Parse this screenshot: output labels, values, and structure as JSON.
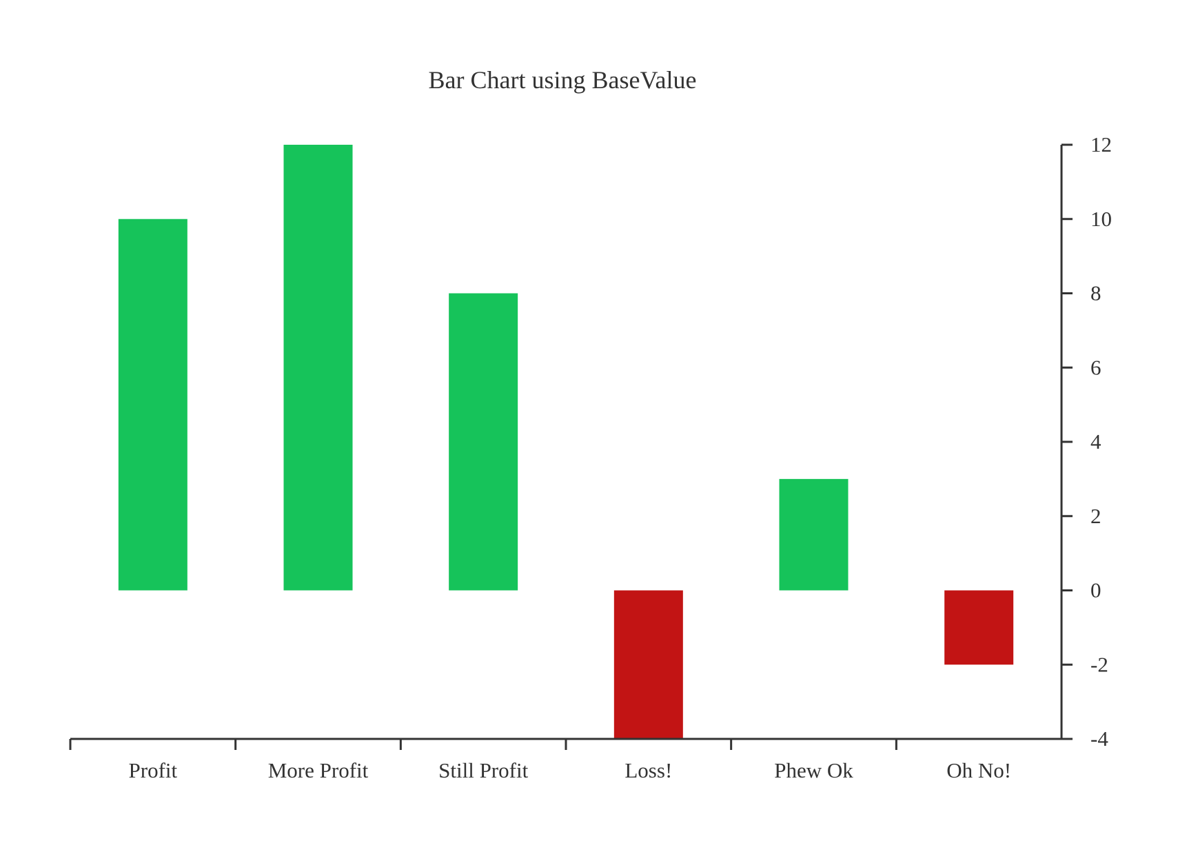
{
  "chart_data": {
    "type": "bar",
    "title": "Bar Chart using BaseValue",
    "xlabel": "",
    "ylabel": "",
    "categories": [
      "Profit",
      "More Profit",
      "Still Profit",
      "Loss!",
      "Phew Ok",
      "Oh No!"
    ],
    "values": [
      10,
      12,
      8,
      -4,
      3,
      -2
    ],
    "base_value": 0,
    "ylim": [
      -4,
      12
    ],
    "yticks": [
      -4,
      -2,
      0,
      2,
      4,
      6,
      8,
      10,
      12
    ],
    "y_axis_side": "right",
    "grid": false,
    "legend": "none",
    "colors": {
      "positive": "#16c35a",
      "negative": "#c21414",
      "axis": "#333333",
      "text": "#333333"
    }
  }
}
